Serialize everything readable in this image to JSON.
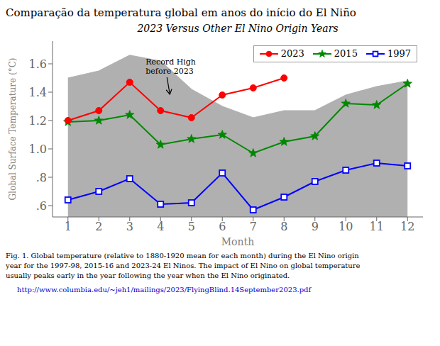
{
  "chart_data": {
    "type": "line",
    "title": "Comparação da temperatura global em anos do início do El Niño",
    "subtitle": "2023 Versus Other El Nino Origin Years",
    "x_label": "Month",
    "y_label": "Global Surface Temperature (°C)",
    "x": [
      1,
      2,
      3,
      4,
      5,
      6,
      7,
      8,
      9,
      10,
      11,
      12
    ],
    "series": [
      {
        "type": "area",
        "color": "#b0b0b0",
        "values": [
          1.5,
          1.55,
          1.66,
          1.62,
          1.42,
          1.3,
          1.22,
          1.27,
          1.27,
          1.38,
          1.44,
          1.48
        ]
      },
      {
        "name": "2023",
        "color": "#ff0000",
        "marker": "circle",
        "line_style": "solid",
        "values": [
          1.2,
          1.27,
          1.47,
          1.27,
          1.22,
          1.38,
          1.43,
          1.5,
          null,
          null,
          null,
          null
        ]
      },
      {
        "name": "2015",
        "color": "#008800",
        "marker": "star",
        "line_style": "solid",
        "values": [
          1.19,
          1.2,
          1.24,
          1.03,
          1.07,
          1.1,
          0.97,
          1.05,
          1.09,
          1.32,
          1.31,
          1.46
        ]
      },
      {
        "name": "1997",
        "color": "#0000ff",
        "marker": "open_square",
        "line_style": "solid",
        "values": [
          0.64,
          0.7,
          0.79,
          0.61,
          0.62,
          0.83,
          0.57,
          0.66,
          0.77,
          0.85,
          0.9,
          0.88
        ]
      }
    ],
    "xlim": [
      0.5,
      12.5
    ],
    "xticks": [
      1,
      2,
      3,
      4,
      5,
      6,
      7,
      8,
      9,
      10,
      11,
      12
    ],
    "ylim": [
      0.52,
      1.76
    ],
    "yticks": [
      {
        "value": 0.6,
        "label": ".6"
      },
      {
        "value": 0.8,
        "label": ".8"
      },
      {
        "value": 1.0,
        "label": "1.0"
      },
      1.2,
      1.4,
      1.6
    ],
    "grid": false,
    "legend": "upper right",
    "annotations": [
      {
        "text": "Record High\nbefore 2023",
        "x": 4.3,
        "y": 1.375
      },
      {
        "text": "Fig. 1. Global temperature (relative to 1880-1920 mean for each month) during the El Nino origin\nyear for the 1997-98, 2015-16 and 2023-24 El Ninos.  The impact of El Nino on global temperature\nusually peaks early in the year following the year when the El Nino originated."
      },
      {
        "text": "http://www.columbia.edu/~jeh1/mailings/2023/FlyingBlind.14September2023.pdf",
        "color": "#0000cc"
      }
    ]
  }
}
